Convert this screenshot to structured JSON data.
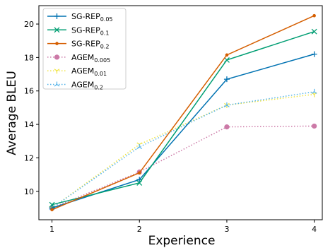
{
  "chart_data": {
    "type": "line",
    "xlabel": "Experience",
    "ylabel": "Average BLEU",
    "x": [
      1,
      2,
      3,
      4
    ],
    "x_ticks": [
      "1",
      "2",
      "3",
      "4"
    ],
    "ylim": [
      8.3,
      21.1
    ],
    "y_ticks": [
      "10",
      "12",
      "14",
      "16",
      "18",
      "20"
    ],
    "grid": false,
    "legend_position": "top-left",
    "series": [
      {
        "name": "SG-REP",
        "name_sub": "0.05",
        "values": [
          9.0,
          10.7,
          16.7,
          18.2
        ],
        "color": "#0072b2",
        "linestyle": "solid",
        "marker": "plus"
      },
      {
        "name": "SG-REP",
        "name_sub": "0.1",
        "values": [
          9.2,
          10.5,
          17.85,
          19.55
        ],
        "color": "#009e73",
        "linestyle": "solid",
        "marker": "x"
      },
      {
        "name": "SG-REP",
        "name_sub": "0.2",
        "values": [
          8.9,
          11.1,
          18.15,
          20.5
        ],
        "color": "#d55e00",
        "linestyle": "solid",
        "marker": "dot-small"
      },
      {
        "name": "AGEM",
        "name_sub": "0.005",
        "values": [
          9.0,
          11.15,
          13.85,
          13.9
        ],
        "color": "#cc79a7",
        "linestyle": "dotted",
        "marker": "circle"
      },
      {
        "name": "AGEM",
        "name_sub": "0.01",
        "values": [
          9.0,
          12.8,
          15.15,
          15.8
        ],
        "color": "#f0e442",
        "linestyle": "dotted",
        "marker": "tri-down"
      },
      {
        "name": "AGEM",
        "name_sub": "0.2",
        "values": [
          9.0,
          12.65,
          15.15,
          15.95
        ],
        "color": "#56b4e9",
        "linestyle": "dotted",
        "marker": "tri-up"
      }
    ]
  }
}
